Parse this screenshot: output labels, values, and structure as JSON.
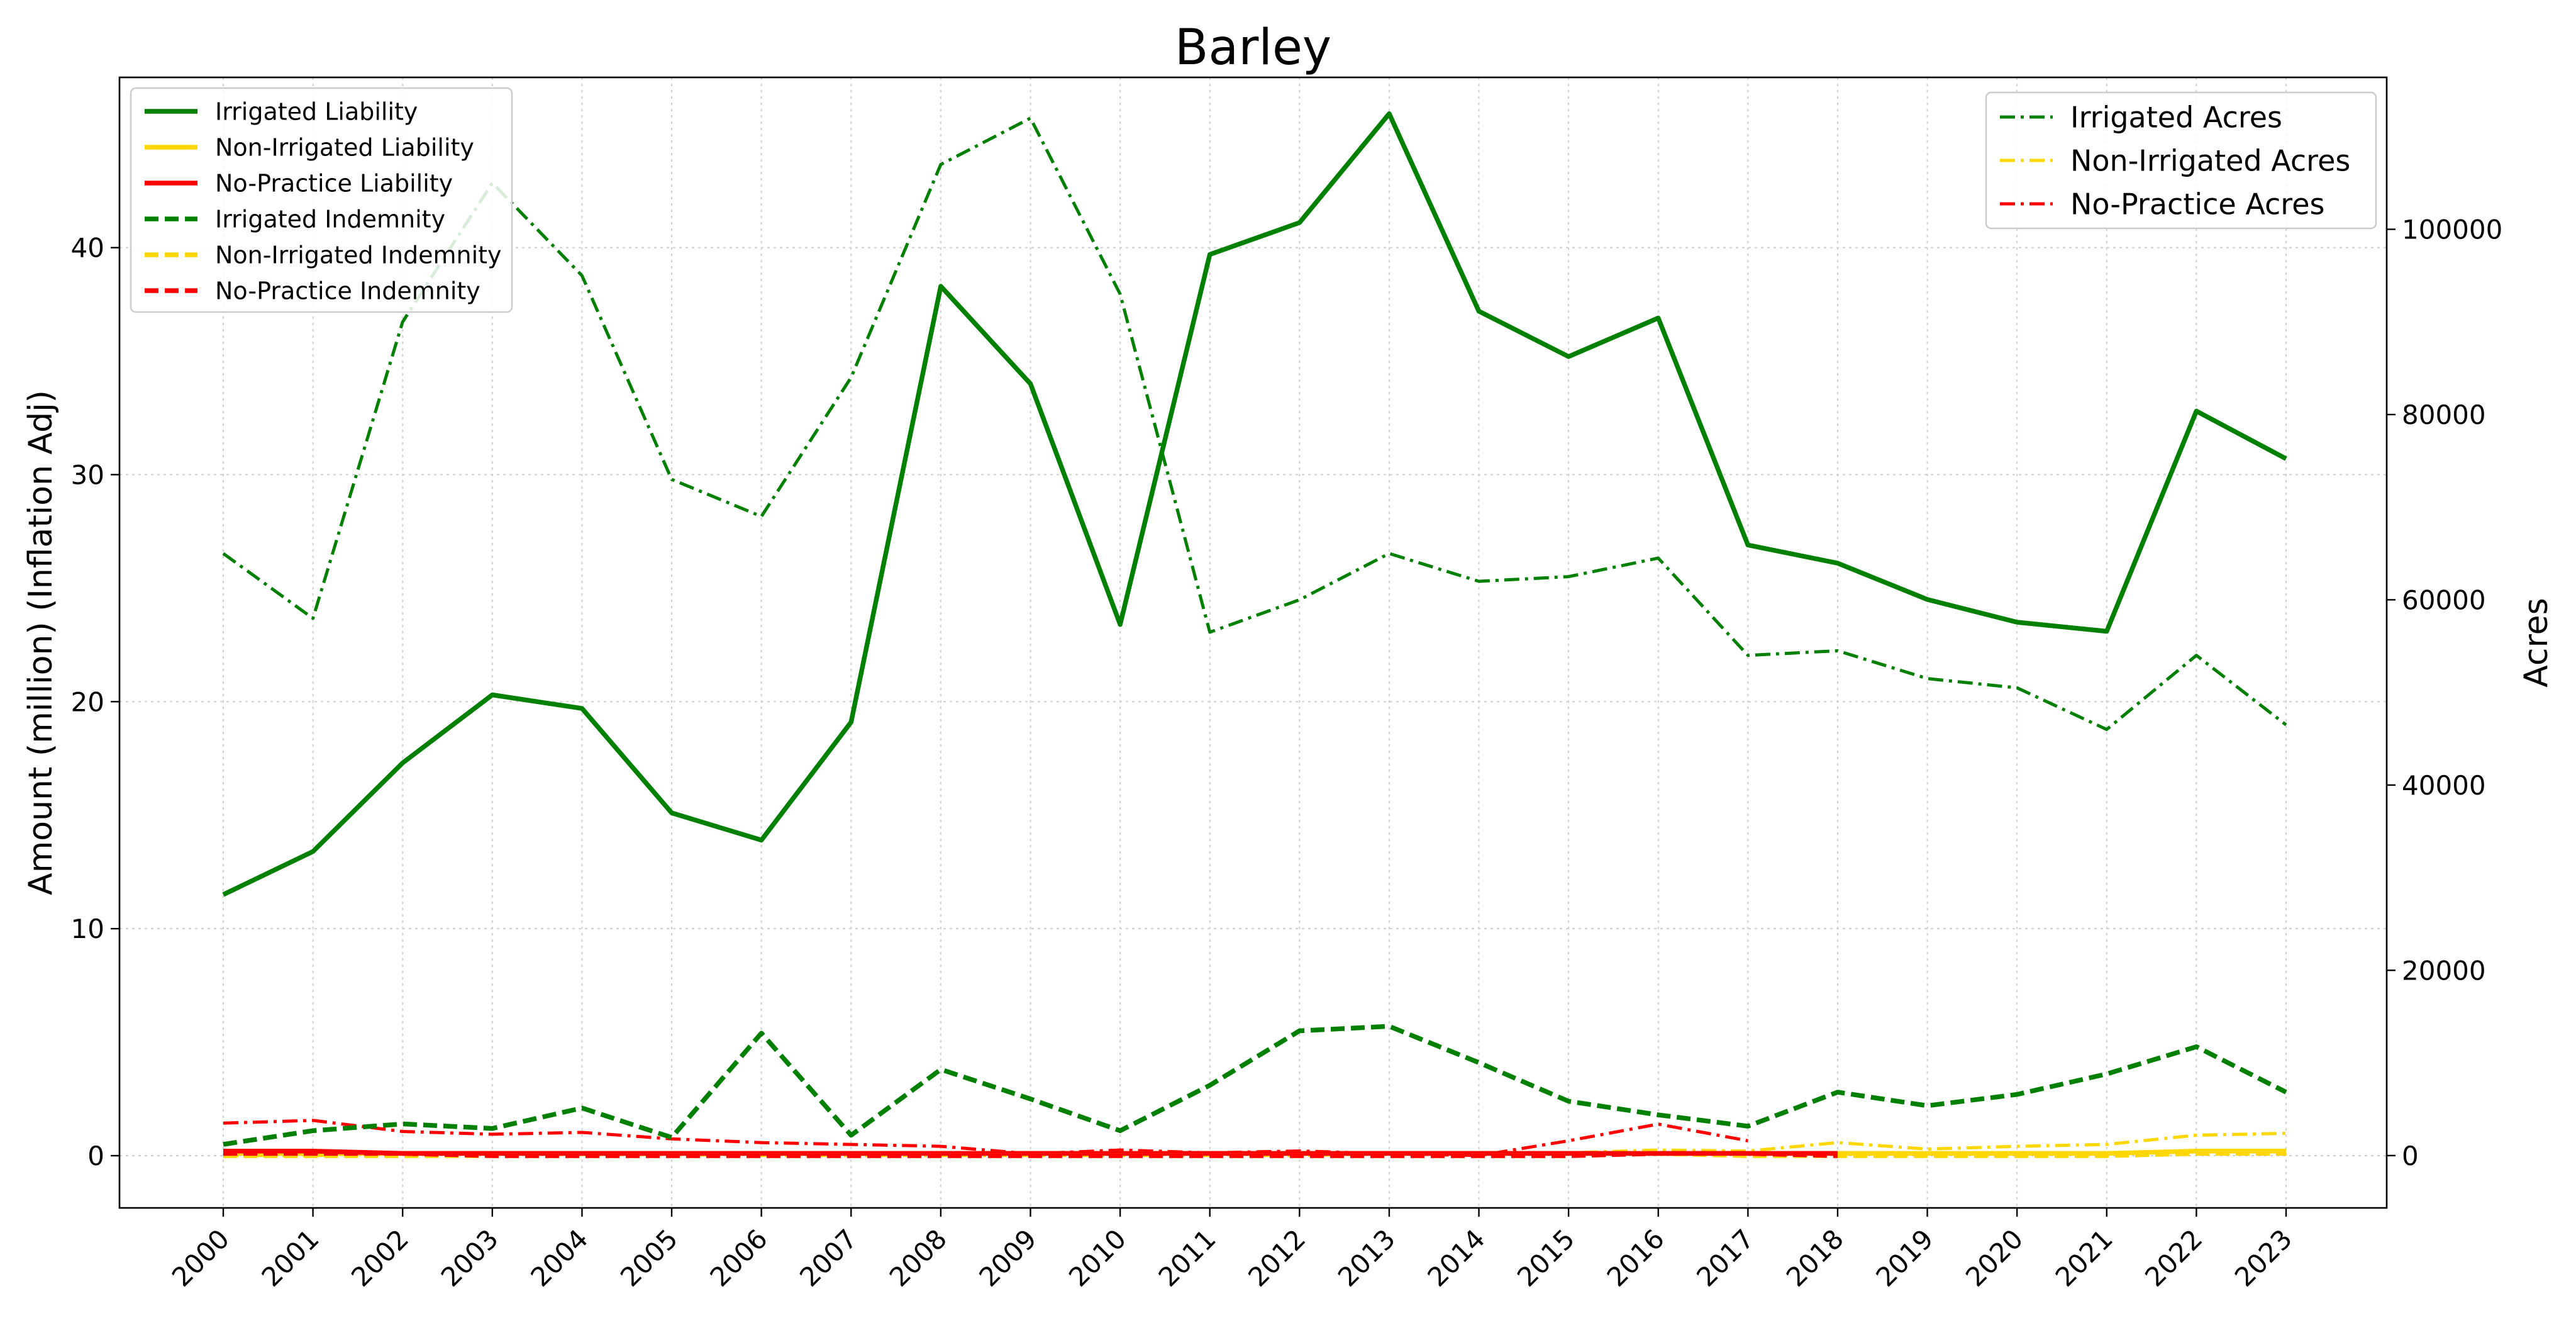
{
  "chart_data": {
    "type": "line",
    "title": "Barley",
    "xlabel": "",
    "ylabel": "Amount (million) (Inflation Adj)",
    "y2label": "Acres",
    "x": [
      "2000",
      "2001",
      "2002",
      "2003",
      "2004",
      "2005",
      "2006",
      "2007",
      "2008",
      "2009",
      "2010",
      "2011",
      "2012",
      "2013",
      "2014",
      "2015",
      "2016",
      "2017",
      "2018",
      "2019",
      "2020",
      "2021",
      "2022",
      "2023"
    ],
    "ylim": [
      -2.3,
      47.5
    ],
    "yticks": [
      0,
      10,
      20,
      30,
      40
    ],
    "y2lim": [
      -5650,
      116400
    ],
    "y2ticks": [
      0,
      20000,
      40000,
      60000,
      80000,
      100000
    ],
    "grid": true,
    "legend_left_position": "upper-left",
    "legend_right_position": "upper-right",
    "series_left": [
      {
        "name": "Irrigated Liability",
        "color": "#008000",
        "style": "solid",
        "values": [
          11.5,
          13.4,
          17.3,
          20.3,
          19.7,
          15.1,
          13.9,
          19.1,
          38.3,
          34.0,
          23.4,
          39.7,
          41.1,
          45.9,
          37.2,
          35.2,
          36.9,
          26.9,
          26.1,
          24.5,
          23.5,
          23.1,
          32.8,
          30.7
        ]
      },
      {
        "name": "Non-Irrigated Liability",
        "color": "#FFD700",
        "style": "solid",
        "values": [
          0.1,
          0.1,
          0.1,
          0.1,
          0.1,
          0.1,
          0.1,
          0.1,
          0.1,
          0.1,
          0.1,
          0.1,
          0.1,
          0.1,
          0.1,
          0.1,
          0.1,
          0.1,
          0.1,
          0.1,
          0.1,
          0.1,
          0.2,
          0.2
        ]
      },
      {
        "name": "No-Practice Liability",
        "color": "#FF0000",
        "style": "solid",
        "values": [
          0.2,
          0.2,
          0.1,
          0.1,
          0.1,
          0.1,
          0.1,
          0.1,
          0.1,
          0.1,
          0.1,
          0.1,
          0.1,
          0.1,
          0.1,
          0.1,
          0.1,
          0.1,
          0.1,
          null,
          null,
          null,
          null,
          null
        ]
      },
      {
        "name": "Irrigated Indemnity",
        "color": "#008000",
        "style": "dashed",
        "values": [
          0.5,
          1.1,
          1.4,
          1.2,
          2.1,
          0.8,
          5.4,
          0.9,
          3.8,
          2.5,
          1.1,
          3.1,
          5.5,
          5.7,
          4.1,
          2.4,
          1.8,
          1.3,
          2.8,
          2.2,
          2.7,
          3.6,
          4.8,
          2.8
        ]
      },
      {
        "name": "Non-Irrigated Indemnity",
        "color": "#FFD700",
        "style": "dashed",
        "values": [
          0.0,
          0.0,
          0.0,
          0.0,
          0.0,
          0.0,
          0.0,
          0.0,
          0.0,
          0.0,
          0.0,
          0.0,
          0.0,
          0.0,
          0.0,
          0.0,
          0.1,
          0.0,
          0.0,
          0.0,
          0.0,
          0.0,
          0.1,
          0.1
        ]
      },
      {
        "name": "No-Practice Indemnity",
        "color": "#FF0000",
        "style": "dashed",
        "values": [
          0.1,
          0.1,
          0.1,
          0.0,
          0.0,
          0.0,
          0.0,
          0.0,
          0.0,
          0.0,
          0.0,
          0.0,
          0.0,
          0.0,
          0.0,
          0.0,
          0.1,
          0.1,
          0.0,
          null,
          null,
          null,
          null,
          null
        ]
      }
    ],
    "series_right": [
      {
        "name": "Irrigated Acres",
        "color": "#008000",
        "style": "dashdot",
        "values": [
          65000,
          58000,
          90000,
          105000,
          95000,
          73000,
          69000,
          84000,
          107000,
          112000,
          93000,
          56500,
          60000,
          65000,
          62000,
          62500,
          64500,
          54000,
          54500,
          51500,
          50500,
          46000,
          54000,
          46500
        ]
      },
      {
        "name": "Non-Irrigated Acres",
        "color": "#FFD700",
        "style": "dashdot",
        "values": [
          0,
          0,
          300,
          200,
          100,
          100,
          0,
          0,
          0,
          0,
          0,
          0,
          0,
          200,
          200,
          300,
          600,
          500,
          1400,
          700,
          1000,
          1200,
          2200,
          2400
        ]
      },
      {
        "name": "No-Practice Acres",
        "color": "#FF0000",
        "style": "dashdot",
        "values": [
          3500,
          3800,
          2600,
          2300,
          2500,
          1800,
          1400,
          1200,
          1000,
          200,
          600,
          300,
          500,
          200,
          0,
          1600,
          3400,
          1600,
          null,
          null,
          null,
          null,
          null,
          null
        ]
      }
    ]
  }
}
